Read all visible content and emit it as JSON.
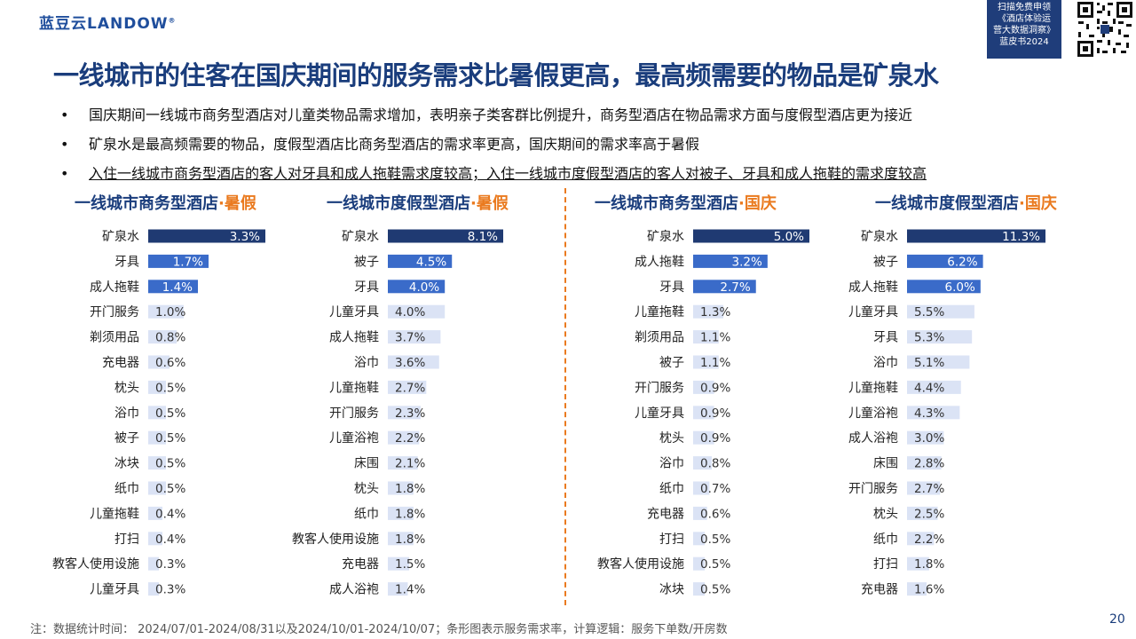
{
  "brand": {
    "logo_text": "蓝豆云LANDOW",
    "reg_mark": "®"
  },
  "promo": {
    "lines": [
      "扫描免费申领",
      "《酒店体验运",
      "营大数据洞察》",
      "蓝皮书2024"
    ]
  },
  "title": "一线城市的住客在国庆期间的服务需求比暑假更高，最高频需要的物品是矿泉水",
  "bullets": [
    "国庆期间一线城市商务型酒店对儿童类物品需求增加，表明亲子类客群比例提升，商务型酒店在物品需求方面与度假型酒店更为接近",
    "矿泉水是最高频需要的物品，度假型酒店比商务型酒店的需求率更高，国庆期间的需求率高于暑假",
    "入住一线城市商务型酒店的客人对牙具和成人拖鞋需求度较高；入住一线城市度假型酒店的客人对被子、牙具和成人拖鞋的需求度较高"
  ],
  "colors": {
    "dark": "#1f3a72",
    "mid": "#3a6bc9",
    "light": "#dbe3f5",
    "accent": "#ea7a1f"
  },
  "chart_data": [
    {
      "type": "bar",
      "title": "一线城市商务型酒店",
      "title_highlight": "·暑假",
      "orientation": "horizontal",
      "categories": [
        "矿泉水",
        "牙具",
        "成人拖鞋",
        "开门服务",
        "剃须用品",
        "充电器",
        "枕头",
        "浴巾",
        "被子",
        "冰块",
        "纸巾",
        "儿童拖鞋",
        "打扫",
        "教客人使用设施",
        "儿童牙具"
      ],
      "values": [
        3.3,
        1.7,
        1.4,
        1.0,
        0.8,
        0.6,
        0.5,
        0.5,
        0.5,
        0.5,
        0.5,
        0.4,
        0.4,
        0.3,
        0.3
      ],
      "value_labels": [
        "3.3%",
        "1.7%",
        "1.4%",
        "1.0%",
        "0.8%",
        "0.6%",
        "0.5%",
        "0.5%",
        "0.5%",
        "0.5%",
        "0.5%",
        "0.4%",
        "0.4%",
        "0.3%",
        "0.3%"
      ]
    },
    {
      "type": "bar",
      "title": "一线城市度假型酒店",
      "title_highlight": "·暑假",
      "orientation": "horizontal",
      "categories": [
        "矿泉水",
        "被子",
        "牙具",
        "儿童牙具",
        "成人拖鞋",
        "浴巾",
        "儿童拖鞋",
        "开门服务",
        "儿童浴袍",
        "床围",
        "枕头",
        "纸巾",
        "教客人使用设施",
        "充电器",
        "成人浴袍"
      ],
      "values": [
        8.1,
        4.5,
        4.0,
        4.0,
        3.7,
        3.6,
        2.7,
        2.3,
        2.2,
        2.1,
        1.8,
        1.8,
        1.8,
        1.5,
        1.4
      ],
      "value_labels": [
        "8.1%",
        "4.5%",
        "4.0%",
        "4.0%",
        "3.7%",
        "3.6%",
        "2.7%",
        "2.3%",
        "2.2%",
        "2.1%",
        "1.8%",
        "1.8%",
        "1.8%",
        "1.5%",
        "1.4%"
      ]
    },
    {
      "type": "bar",
      "title": "一线城市商务型酒店",
      "title_highlight": "·国庆",
      "orientation": "horizontal",
      "categories": [
        "矿泉水",
        "成人拖鞋",
        "牙具",
        "儿童拖鞋",
        "剃须用品",
        "被子",
        "开门服务",
        "儿童牙具",
        "枕头",
        "浴巾",
        "纸巾",
        "充电器",
        "打扫",
        "教客人使用设施",
        "冰块"
      ],
      "values": [
        5.0,
        3.2,
        2.7,
        1.3,
        1.1,
        1.1,
        0.9,
        0.9,
        0.9,
        0.8,
        0.7,
        0.6,
        0.5,
        0.5,
        0.5
      ],
      "value_labels": [
        "5.0%",
        "3.2%",
        "2.7%",
        "1.3%",
        "1.1%",
        "1.1%",
        "0.9%",
        "0.9%",
        "0.9%",
        "0.8%",
        "0.7%",
        "0.6%",
        "0.5%",
        "0.5%",
        "0.5%"
      ]
    },
    {
      "type": "bar",
      "title": "一线城市度假型酒店",
      "title_highlight": "·国庆",
      "orientation": "horizontal",
      "categories": [
        "矿泉水",
        "被子",
        "成人拖鞋",
        "儿童牙具",
        "牙具",
        "浴巾",
        "儿童拖鞋",
        "儿童浴袍",
        "成人浴袍",
        "床围",
        "开门服务",
        "枕头",
        "纸巾",
        "打扫",
        "充电器"
      ],
      "values": [
        11.3,
        6.2,
        6.0,
        5.5,
        5.3,
        5.1,
        4.4,
        4.3,
        3.0,
        2.8,
        2.7,
        2.5,
        2.2,
        1.8,
        1.6
      ],
      "value_labels": [
        "11.3%",
        "6.2%",
        "6.0%",
        "5.5%",
        "5.3%",
        "5.1%",
        "4.4%",
        "4.3%",
        "3.0%",
        "2.8%",
        "2.7%",
        "2.5%",
        "2.2%",
        "1.8%",
        "1.6%"
      ]
    }
  ],
  "footnote": "注：数据统计时间： 2024/07/01-2024/08/31以及2024/10/01-2024/10/07；条形图表示服务需求率，计算逻辑：服务下单数/开房数",
  "page_number": "20"
}
